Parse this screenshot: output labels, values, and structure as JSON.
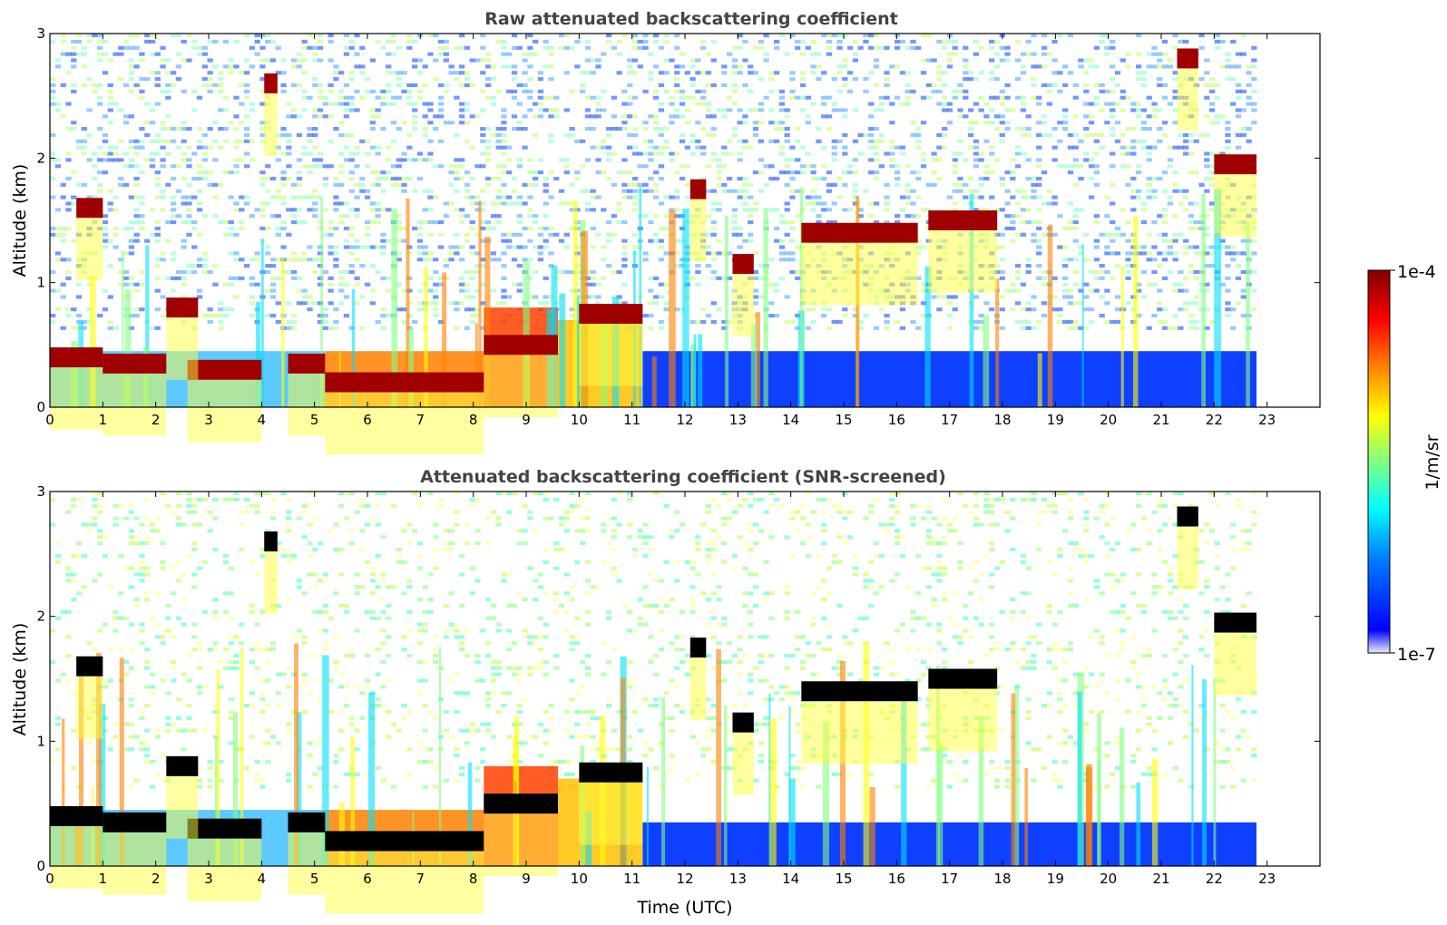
{
  "chart_data": [
    {
      "type": "heatmap",
      "title": "Raw attenuated backscattering coefficient",
      "xlabel": "",
      "ylabel": "Altitude (km)",
      "xlim": [
        0,
        24
      ],
      "ylim": [
        0,
        3
      ],
      "x_ticks": [
        "0",
        "1",
        "2",
        "3",
        "4",
        "5",
        "6",
        "7",
        "8",
        "9",
        "10",
        "11",
        "12",
        "13",
        "14",
        "15",
        "16",
        "17",
        "18",
        "19",
        "20",
        "21",
        "22",
        "23"
      ],
      "y_ticks": [
        "0",
        "1",
        "2",
        "3"
      ],
      "data_end_time": 22.8,
      "low_cloud_layers": [
        {
          "start": 0.0,
          "end": 1.0,
          "altitude_km": 0.4
        },
        {
          "start": 1.0,
          "end": 2.2,
          "altitude_km": 0.35
        },
        {
          "start": 2.6,
          "end": 4.0,
          "altitude_km": 0.3
        },
        {
          "start": 4.5,
          "end": 5.2,
          "altitude_km": 0.35
        },
        {
          "start": 5.2,
          "end": 8.2,
          "altitude_km": 0.2
        },
        {
          "start": 8.2,
          "end": 9.6,
          "altitude_km": 0.5
        },
        {
          "start": 10.0,
          "end": 11.2,
          "altitude_km": 0.75
        }
      ],
      "elevated_cloud_layers": [
        {
          "start": 0.5,
          "end": 1.0,
          "altitude_km": 1.6
        },
        {
          "start": 2.2,
          "end": 2.8,
          "altitude_km": 0.8
        },
        {
          "start": 4.05,
          "end": 4.3,
          "altitude_km": 2.6
        },
        {
          "start": 12.1,
          "end": 12.4,
          "altitude_km": 1.75
        },
        {
          "start": 12.9,
          "end": 13.3,
          "altitude_km": 1.15
        },
        {
          "start": 14.2,
          "end": 16.4,
          "altitude_km": 1.4
        },
        {
          "start": 16.6,
          "end": 17.9,
          "altitude_km": 1.5
        },
        {
          "start": 21.3,
          "end": 21.7,
          "altitude_km": 2.8
        },
        {
          "start": 22.0,
          "end": 22.8,
          "altitude_km": 1.95
        }
      ]
    },
    {
      "type": "heatmap",
      "title": "Attenuated backscattering coefficient (SNR-screened)",
      "xlabel": "Time (UTC)",
      "ylabel": "Altitude (km)",
      "xlim": [
        0,
        24
      ],
      "ylim": [
        0,
        3
      ],
      "x_ticks": [
        "0",
        "1",
        "2",
        "3",
        "4",
        "5",
        "6",
        "7",
        "8",
        "9",
        "10",
        "11",
        "12",
        "13",
        "14",
        "15",
        "16",
        "17",
        "18",
        "19",
        "20",
        "21",
        "22",
        "23"
      ],
      "y_ticks": [
        "0",
        "1",
        "2",
        "3"
      ],
      "data_end_time": 22.8,
      "screened_layer_top_km": 0.35
    }
  ],
  "colorbar": {
    "label": "1/m/sr",
    "min_label": "1e-7",
    "max_label": "1e-4",
    "colormap": [
      "#ececf6",
      "#0000ff",
      "#0080ff",
      "#00ffff",
      "#80ff80",
      "#ffff00",
      "#ff8000",
      "#ff0000",
      "#800000"
    ]
  }
}
